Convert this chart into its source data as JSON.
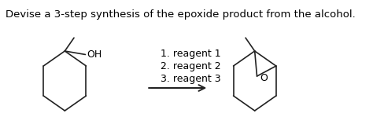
{
  "title": "Devise a 3-step synthesis of the epoxide product from the alcohol.",
  "reagents": [
    "1. reagent 1",
    "2. reagent 2",
    "3. reagent 3"
  ],
  "oh_label": "OH",
  "o_label": "O",
  "bg_color": "#ffffff",
  "title_fontsize": 9.5,
  "label_fontsize": 9.0,
  "line_color": "#222222",
  "text_color": "#000000",
  "fig_width": 4.74,
  "fig_height": 1.63,
  "dpi": 100
}
